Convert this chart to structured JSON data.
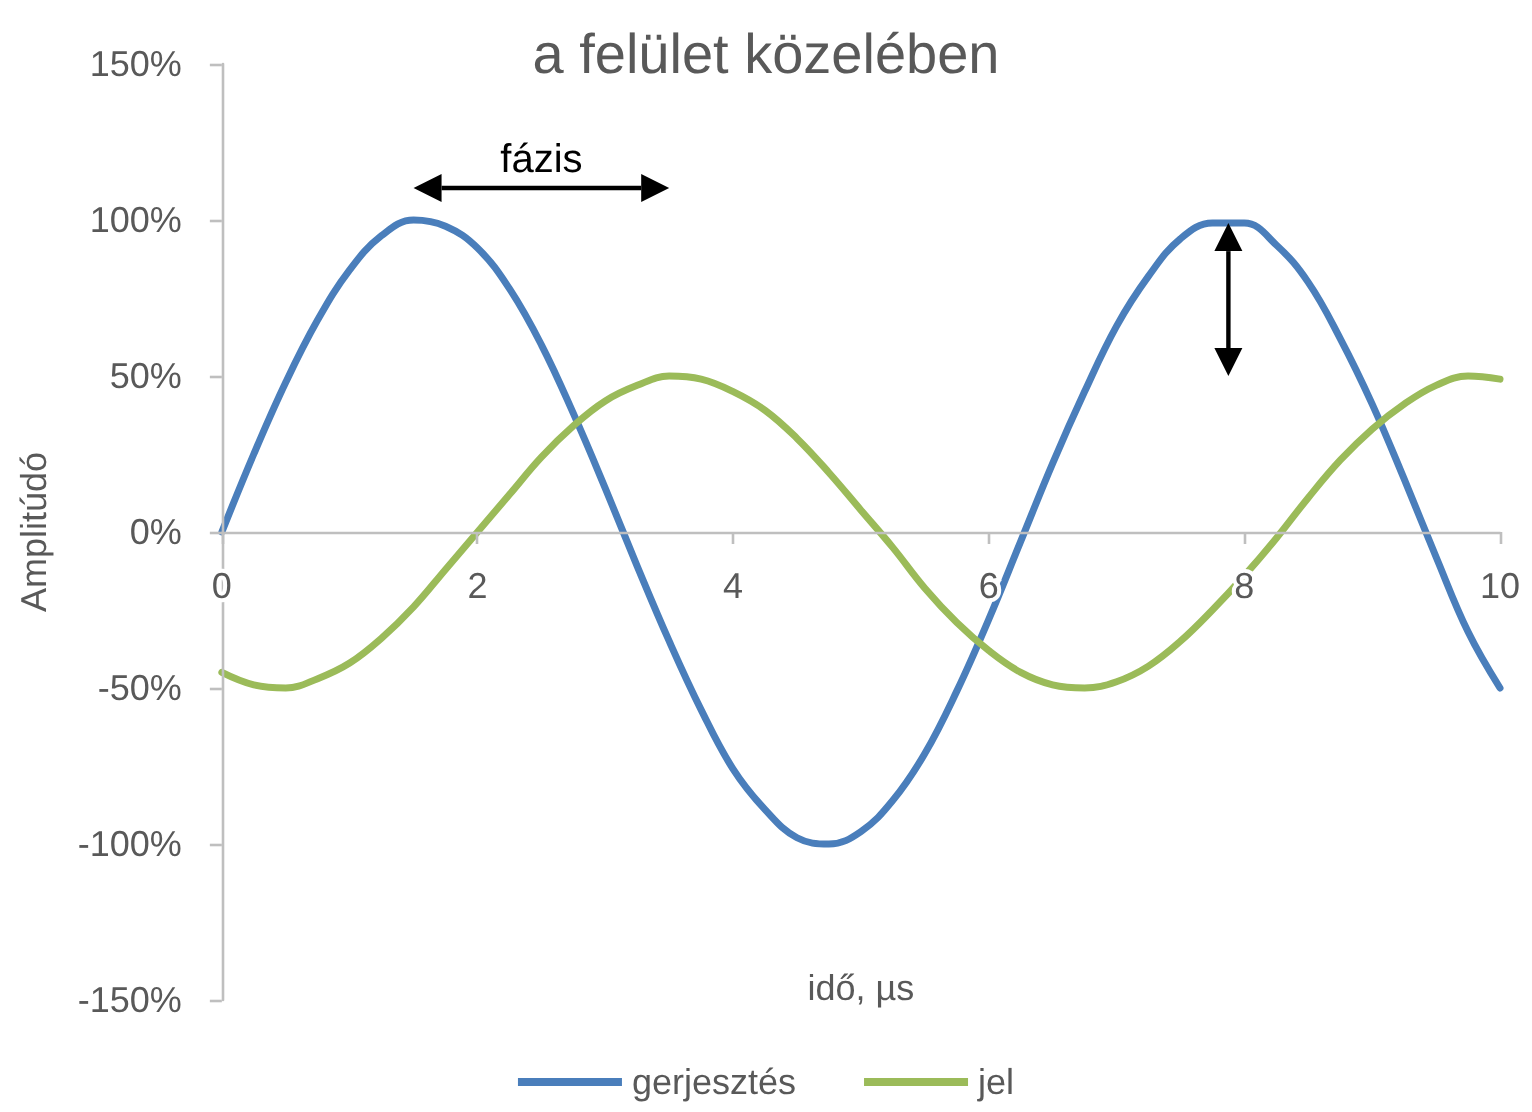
{
  "chart_data": {
    "type": "line",
    "title": "a felület közelében",
    "xlabel": "idő, µs",
    "ylabel": "Amplitúdó",
    "x": [
      0,
      0.25,
      0.5,
      0.75,
      1,
      1.25,
      1.5,
      1.75,
      2,
      2.25,
      2.5,
      2.75,
      3,
      3.25,
      3.5,
      3.75,
      4,
      4.25,
      4.5,
      4.75,
      5,
      5.25,
      5.5,
      5.75,
      6,
      6.25,
      6.5,
      6.75,
      7,
      7.25,
      7.5,
      7.75,
      8,
      8.25,
      8.5,
      8.75,
      9,
      9.25,
      9.5,
      9.75,
      10
    ],
    "series": [
      {
        "name": "gerjesztés",
        "color": "#4a7ebb",
        "values": [
          0,
          25,
          48,
          68,
          84,
          95,
          100,
          98,
          91,
          78,
          60,
          38,
          14,
          -11,
          -35,
          -57,
          -76,
          -89,
          -98,
          -100,
          -96,
          -86,
          -71,
          -51,
          -28,
          -3,
          22,
          45,
          66,
          82,
          94,
          99,
          99,
          92,
          80,
          62,
          41,
          17,
          -8,
          -32,
          -50
        ]
      },
      {
        "name": "jel",
        "color": "#9bbb59",
        "values": [
          -45,
          -49,
          -50,
          -47,
          -42,
          -34,
          -24,
          -12,
          0,
          12,
          24,
          34,
          42,
          47,
          50,
          49,
          45,
          39,
          30,
          19,
          7,
          -5,
          -18,
          -29,
          -38,
          -45,
          -49,
          -50,
          -48,
          -43,
          -35,
          -25,
          -14,
          -2,
          11,
          23,
          33,
          41,
          47,
          50,
          49
        ]
      }
    ],
    "xlim": [
      0,
      10
    ],
    "xticks": [
      0,
      2,
      4,
      6,
      8,
      10
    ],
    "ylim": [
      -150,
      150
    ],
    "yticks": [
      {
        "value": -150,
        "label": "-150%"
      },
      {
        "value": -100,
        "label": "-100%"
      },
      {
        "value": -50,
        "label": "-50%"
      },
      {
        "value": 0,
        "label": "0%"
      },
      {
        "value": 50,
        "label": "50%"
      },
      {
        "value": 100,
        "label": "100%"
      },
      {
        "value": 150,
        "label": "150%"
      }
    ],
    "annotations": [
      "fázis"
    ],
    "legend": "bottom",
    "marker": "none",
    "line_style": "solid"
  }
}
